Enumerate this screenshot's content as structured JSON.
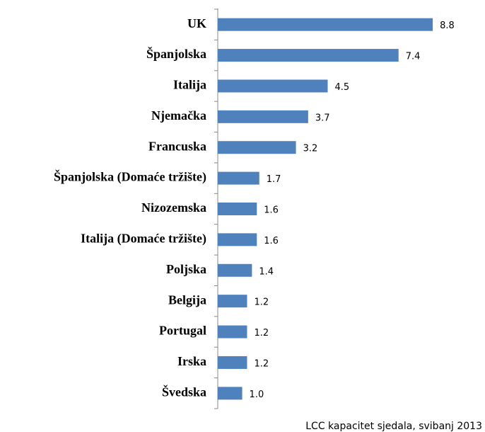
{
  "chart_data": {
    "type": "bar",
    "orientation": "horizontal",
    "categories": [
      "UK",
      "Španjolska",
      "Italija",
      "Njemačka",
      "Francuska",
      "Španjolska (Domaće tržište)",
      "Nizozemska",
      "Italija (Domaće tržište)",
      "Poljska",
      "Belgija",
      "Portugal",
      "Irska",
      "Švedska"
    ],
    "values": [
      8.8,
      7.4,
      4.5,
      3.7,
      3.2,
      1.7,
      1.6,
      1.6,
      1.4,
      1.2,
      1.2,
      1.2,
      1.0
    ],
    "value_labels": [
      "8.8",
      "7.4",
      "4.5",
      "3.7",
      "3.2",
      "1.7",
      "1.6",
      "1.6",
      "1.4",
      "1.2",
      "1.2",
      "1.2",
      "1.0"
    ],
    "color": "#4f81bd",
    "xlim": [
      0,
      9
    ],
    "source": "LCC kapacitet sjedala, svibanj 2013"
  }
}
